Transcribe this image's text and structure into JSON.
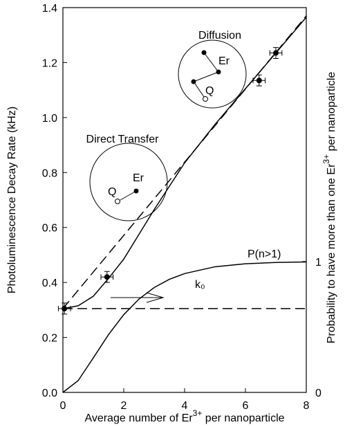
{
  "chart_data": {
    "type": "line",
    "x_label": {
      "text": "Average number of Er",
      "sup": "3+",
      "tail": " per nanoparticle"
    },
    "y_label": "Photoluminescence Decay Rate (kHz)",
    "y2_label": {
      "text": "Probability to have more than one Er",
      "sup": "3+",
      "tail": " per nanoparticle"
    },
    "xlim": [
      0,
      8
    ],
    "xticks": [
      0,
      2,
      4,
      6,
      8
    ],
    "ylim": [
      0,
      1.4
    ],
    "yticks": [
      {
        "value": 0,
        "label": "0.0"
      },
      0.2,
      0.4,
      0.6,
      0.8,
      {
        "value": 1,
        "label": "1.0"
      },
      1.2,
      1.4
    ],
    "y2lim": [
      0,
      2.94
    ],
    "y2ticks": [
      0,
      1
    ],
    "annotations": [
      "Direct Transfer",
      "Diffusion",
      "Er",
      "Q",
      "Er",
      "Q",
      "P(n>1)",
      "k₀"
    ],
    "series": [
      {
        "kind": "line",
        "color": "#000000",
        "dashed": false,
        "x": [
          0,
          0.5,
          1,
          1.5,
          2,
          2.5,
          3,
          3.5,
          4,
          5,
          6,
          7,
          8
        ],
        "values": [
          0.305,
          0.315,
          0.35,
          0.415,
          0.485,
          0.575,
          0.665,
          0.75,
          0.835,
          0.975,
          1.105,
          1.235,
          1.365
        ]
      },
      {
        "kind": "line",
        "color": "#000000",
        "dashed": true,
        "x": [
          0,
          8
        ],
        "values": [
          0.305,
          1.37
        ]
      },
      {
        "kind": "line",
        "color": "#000000",
        "dashed": true,
        "x": [
          0,
          8
        ],
        "values": [
          0.305,
          0.305
        ]
      },
      {
        "kind": "line",
        "color": "#000000",
        "dashed": false,
        "axis": "y2",
        "x": [
          0,
          0.5,
          1,
          1.5,
          2,
          2.5,
          3,
          3.5,
          4,
          5,
          6,
          7,
          8
        ],
        "values": [
          0,
          0.09,
          0.264,
          0.442,
          0.594,
          0.713,
          0.801,
          0.864,
          0.908,
          0.96,
          0.983,
          0.993,
          0.997
        ]
      },
      {
        "kind": "scatter",
        "color": "#000000",
        "x": [
          0.05,
          1.45,
          6.45,
          7.0
        ],
        "values": [
          0.305,
          0.42,
          1.135,
          1.235
        ],
        "xerr": [
          0.2,
          0.2,
          0.2,
          0.2
        ],
        "yerr": [
          0.02,
          0.02,
          0.02,
          0.02
        ]
      }
    ]
  }
}
